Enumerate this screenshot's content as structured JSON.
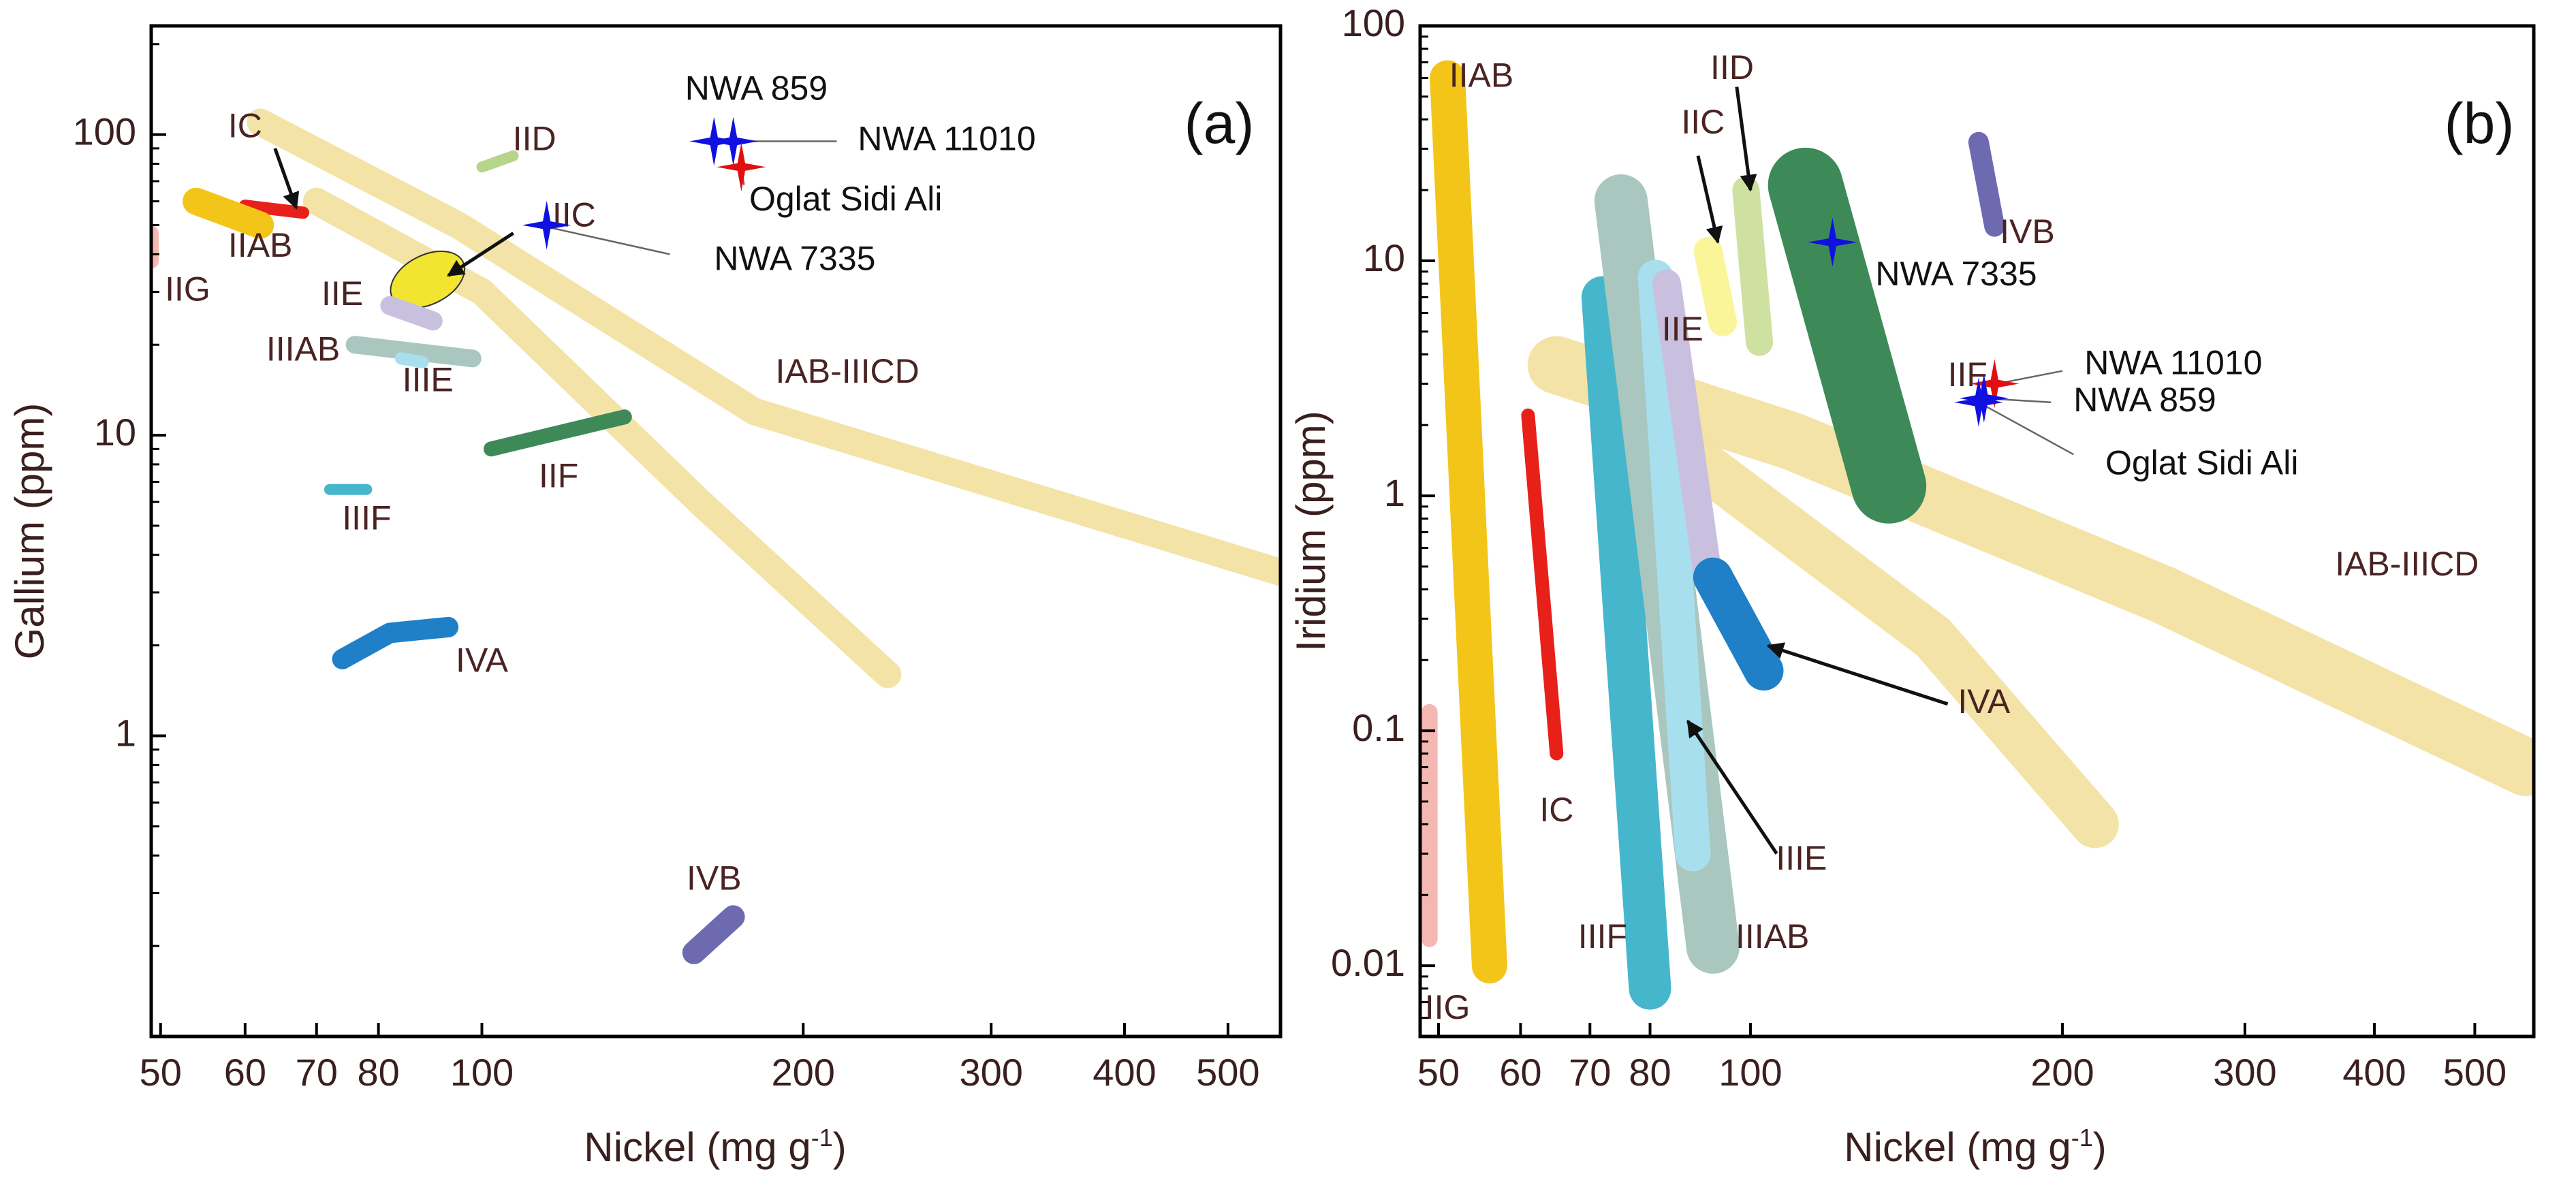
{
  "chart_data": [
    {
      "type": "scatter",
      "panel_label": "(a)",
      "xlabel": "Nickel (mg g",
      "xlabel_sup": "-1",
      "xlabel_close": ")",
      "ylabel": "Gallium (ppm)",
      "xscale": "log",
      "yscale": "log",
      "xlim": [
        49,
        560
      ],
      "ylim": [
        0.1,
        230
      ],
      "x_ticks": [
        50,
        60,
        70,
        80,
        100,
        200,
        300,
        400,
        500
      ],
      "x_tick_labels": [
        "50",
        "60",
        "70",
        "80",
        "100",
        "200",
        "300",
        "400",
        "500"
      ],
      "y_ticks": [
        1,
        10,
        100
      ],
      "y_tick_labels": [
        "1",
        "10",
        "100"
      ],
      "groups": [
        {
          "name": "IAB-IIICD",
          "color": "#f3e2a2",
          "shape": "band",
          "points": [
            [
              62,
              110
            ],
            [
              95,
              50
            ],
            [
              180,
              12
            ],
            [
              560,
              3.5
            ]
          ],
          "width": 40,
          "label_pos": [
            220,
            16
          ]
        },
        {
          "name": "IAB-IIICD",
          "color": "#f3e2a2",
          "shape": "band",
          "points": [
            [
              70,
              60
            ],
            [
              100,
              30
            ],
            [
              160,
              6
            ],
            [
              240,
              1.6
            ]
          ],
          "width": 40,
          "label": false
        },
        {
          "name": "IC",
          "color": "#e8201a",
          "shape": "capsule",
          "points": [
            [
              60,
              58
            ],
            [
              68,
              55
            ]
          ],
          "width": 18,
          "label_pos": [
            60,
            105
          ]
        },
        {
          "name": "IIAB",
          "color": "#f4c519",
          "shape": "capsule",
          "points": [
            [
              54,
              60
            ],
            [
              62,
              50
            ]
          ],
          "width": 40,
          "label_pos": [
            62,
            42
          ]
        },
        {
          "name": "IIG",
          "color": "#f4b7b2",
          "shape": "capsule",
          "points": [
            [
              49,
              47
            ],
            [
              49,
              38
            ]
          ],
          "width": 22,
          "label_pos": [
            53,
            30
          ]
        },
        {
          "name": "IIC",
          "color": "#f2e532",
          "shape": "ellipse",
          "points": [
            [
              86,
              31
            ],
            [
              92,
              35
            ]
          ],
          "width": 36,
          "label_pos": [
            122,
            53
          ]
        },
        {
          "name": "IID",
          "color": "#b6d58a",
          "shape": "capsule",
          "points": [
            [
              100,
              78
            ],
            [
              107,
              85
            ]
          ],
          "width": 16,
          "label_pos": [
            112,
            95
          ]
        },
        {
          "name": "IIE",
          "color": "#c9c0e0",
          "shape": "capsule",
          "points": [
            [
              82,
              27
            ],
            [
              90,
              24
            ]
          ],
          "width": 28,
          "label_pos": [
            74,
            29
          ]
        },
        {
          "name": "IIIAB",
          "color": "#a9c7be",
          "shape": "capsule",
          "points": [
            [
              76,
              20
            ],
            [
              98,
              18
            ]
          ],
          "width": 26,
          "label_pos": [
            68,
            19
          ]
        },
        {
          "name": "IIIE",
          "color": "#a8dfef",
          "shape": "capsule",
          "points": [
            [
              84,
              18
            ],
            [
              88,
              17.5
            ]
          ],
          "width": 18,
          "label_pos": [
            89,
            15
          ]
        },
        {
          "name": "IIF",
          "color": "#3d8a58",
          "shape": "capsule",
          "points": [
            [
              102,
              9
            ],
            [
              136,
              11.5
            ]
          ],
          "width": 22,
          "label_pos": [
            118,
            7.2
          ]
        },
        {
          "name": "IIIF",
          "color": "#46b6cc",
          "shape": "capsule",
          "points": [
            [
              72,
              6.6
            ],
            [
              78,
              6.6
            ]
          ],
          "width": 16,
          "label_pos": [
            78,
            5.2
          ]
        },
        {
          "name": "IVA",
          "color": "#1f80c7",
          "shape": "capsule",
          "points": [
            [
              74,
              1.8
            ],
            [
              82,
              2.2
            ],
            [
              93,
              2.3
            ]
          ],
          "width": 30,
          "label_pos": [
            100,
            1.75
          ]
        },
        {
          "name": "IVB",
          "color": "#6e6ab0",
          "shape": "capsule",
          "points": [
            [
              158,
              0.19
            ],
            [
              172,
              0.25
            ]
          ],
          "width": 34,
          "label_pos": [
            165,
            0.33
          ]
        }
      ],
      "meteorites": [
        {
          "name": "NWA 859",
          "x": 165,
          "y": 95,
          "color": "#1010e0"
        },
        {
          "name": "NWA 11010",
          "x": 172,
          "y": 95,
          "color": "#1010e0"
        },
        {
          "name": "Oglat Sidi Ali",
          "x": 175,
          "y": 78,
          "color": "#e01010"
        },
        {
          "name": "NWA 7335",
          "x": 115,
          "y": 50,
          "color": "#1010e0"
        }
      ],
      "annotations": [
        {
          "text": "NWA 859",
          "at": [
            155,
            140
          ]
        },
        {
          "text": "NWA 11010",
          "at": [
            225,
            95
          ]
        },
        {
          "text": "Oglat Sidi Ali",
          "at": [
            178,
            60
          ]
        },
        {
          "text": "NWA 7335",
          "at": [
            165,
            38
          ]
        }
      ]
    },
    {
      "type": "scatter",
      "panel_label": "(b)",
      "xlabel": "Nickel (mg g",
      "xlabel_sup": "-1",
      "xlabel_close": ")",
      "ylabel": "Iridium (ppm)",
      "xscale": "log",
      "yscale": "log",
      "xlim": [
        48,
        570
      ],
      "ylim": [
        0.005,
        100
      ],
      "x_ticks": [
        50,
        60,
        70,
        80,
        100,
        200,
        300,
        400,
        500
      ],
      "x_tick_labels": [
        "50",
        "60",
        "70",
        "80",
        "100",
        "200",
        "300",
        "400",
        "500"
      ],
      "y_ticks": [
        0.01,
        0.1,
        1,
        10,
        100
      ],
      "y_tick_labels": [
        "0.01",
        "0.1",
        "1",
        "10",
        "100"
      ],
      "groups": [
        {
          "name": "IAB-IIICD",
          "color": "#f3e2a2",
          "shape": "band",
          "points": [
            [
              65,
              3.6
            ],
            [
              110,
              1.7
            ],
            [
              250,
              0.38
            ],
            [
              560,
              0.07
            ]
          ],
          "width": 85,
          "label_pos": [
            430,
            0.5
          ]
        },
        {
          "name": "IAB-IIICD",
          "color": "#f3e2a2",
          "shape": "band",
          "points": [
            [
              80,
              2.0
            ],
            [
              150,
              0.25
            ],
            [
              215,
              0.04
            ]
          ],
          "width": 70,
          "label": false
        },
        {
          "name": "IIAB",
          "color": "#f4c519",
          "shape": "capsule",
          "points": [
            [
              51,
              60
            ],
            [
              56,
              0.01
            ]
          ],
          "width": 52,
          "label_pos": [
            55,
            60
          ]
        },
        {
          "name": "IC",
          "color": "#e8201a",
          "shape": "capsule",
          "points": [
            [
              61,
              2.2
            ],
            [
              65,
              0.08
            ]
          ],
          "width": 20,
          "label_pos": [
            65,
            0.045
          ]
        },
        {
          "name": "IIG",
          "color": "#f4b7b2",
          "shape": "capsule",
          "points": [
            [
              49,
              0.12
            ],
            [
              49,
              0.013
            ]
          ],
          "width": 24,
          "label_pos": [
            51,
            0.0065
          ]
        },
        {
          "name": "IIIF",
          "color": "#46b6cc",
          "shape": "capsule",
          "points": [
            [
              72,
              7
            ],
            [
              80,
              0.008
            ]
          ],
          "width": 62,
          "label_pos": [
            72,
            0.013
          ]
        },
        {
          "name": "IIIAB",
          "color": "#a9c7be",
          "shape": "capsule",
          "points": [
            [
              75,
              18
            ],
            [
              92,
              0.012
            ]
          ],
          "width": 78,
          "label_pos": [
            105,
            0.013
          ]
        },
        {
          "name": "IIIE",
          "color": "#a8dfef",
          "shape": "capsule",
          "points": [
            [
              81,
              8.5
            ],
            [
              88,
              0.03
            ]
          ],
          "width": 52,
          "label_pos": [
            112,
            0.028
          ]
        },
        {
          "name": "IIE",
          "color": "#c9c0e0",
          "shape": "capsule",
          "points": [
            [
              83,
              8
            ],
            [
              91,
              0.45
            ]
          ],
          "width": 42,
          "label_pos": [
            86,
            5
          ]
        },
        {
          "name": "IVA",
          "color": "#1f80c7",
          "shape": "capsule",
          "points": [
            [
              92,
              0.45
            ],
            [
              103,
              0.18
            ]
          ],
          "width": 58,
          "label_pos": [
            168,
            0.13
          ]
        },
        {
          "name": "IIC",
          "color": "#fbf59a",
          "shape": "capsule",
          "points": [
            [
              91,
              11
            ],
            [
              94,
              5.5
            ]
          ],
          "width": 42,
          "label_pos": [
            90,
            38
          ]
        },
        {
          "name": "IID",
          "color": "#cfe1a0",
          "shape": "capsule",
          "points": [
            [
              99,
              20
            ],
            [
              102,
              4.5
            ]
          ],
          "width": 40,
          "label_pos": [
            96,
            65
          ]
        },
        {
          "name": "IIF",
          "color": "#3d8a58",
          "shape": "capsule",
          "points": [
            [
              113,
              21
            ],
            [
              136,
              1.1
            ]
          ],
          "width": 110,
          "label_pos": [
            162,
            3.2
          ]
        },
        {
          "name": "IVB",
          "color": "#6e6ab0",
          "shape": "capsule",
          "points": [
            [
              166,
              32
            ],
            [
              172,
              14
            ]
          ],
          "width": 30,
          "label_pos": [
            185,
            13
          ]
        }
      ],
      "meteorites": [
        {
          "name": "NWA 7335",
          "x": 120,
          "y": 12,
          "color": "#1010e0"
        },
        {
          "name": "NWA 11010",
          "x": 172,
          "y": 3.0,
          "color": "#e01010"
        },
        {
          "name": "NWA 859",
          "x": 168,
          "y": 2.6,
          "color": "#1010e0"
        },
        {
          "name": "Oglat Sidi Ali",
          "x": 166,
          "y": 2.5,
          "color": "#1010e0"
        }
      ],
      "annotations": [
        {
          "text": "NWA 7335",
          "at": [
            132,
            8.6
          ]
        },
        {
          "text": "NWA 11010",
          "at": [
            210,
            3.6
          ]
        },
        {
          "text": "NWA 859",
          "at": [
            205,
            2.5
          ]
        },
        {
          "text": "Oglat Sidi Ali",
          "at": [
            220,
            1.35
          ]
        }
      ]
    }
  ]
}
